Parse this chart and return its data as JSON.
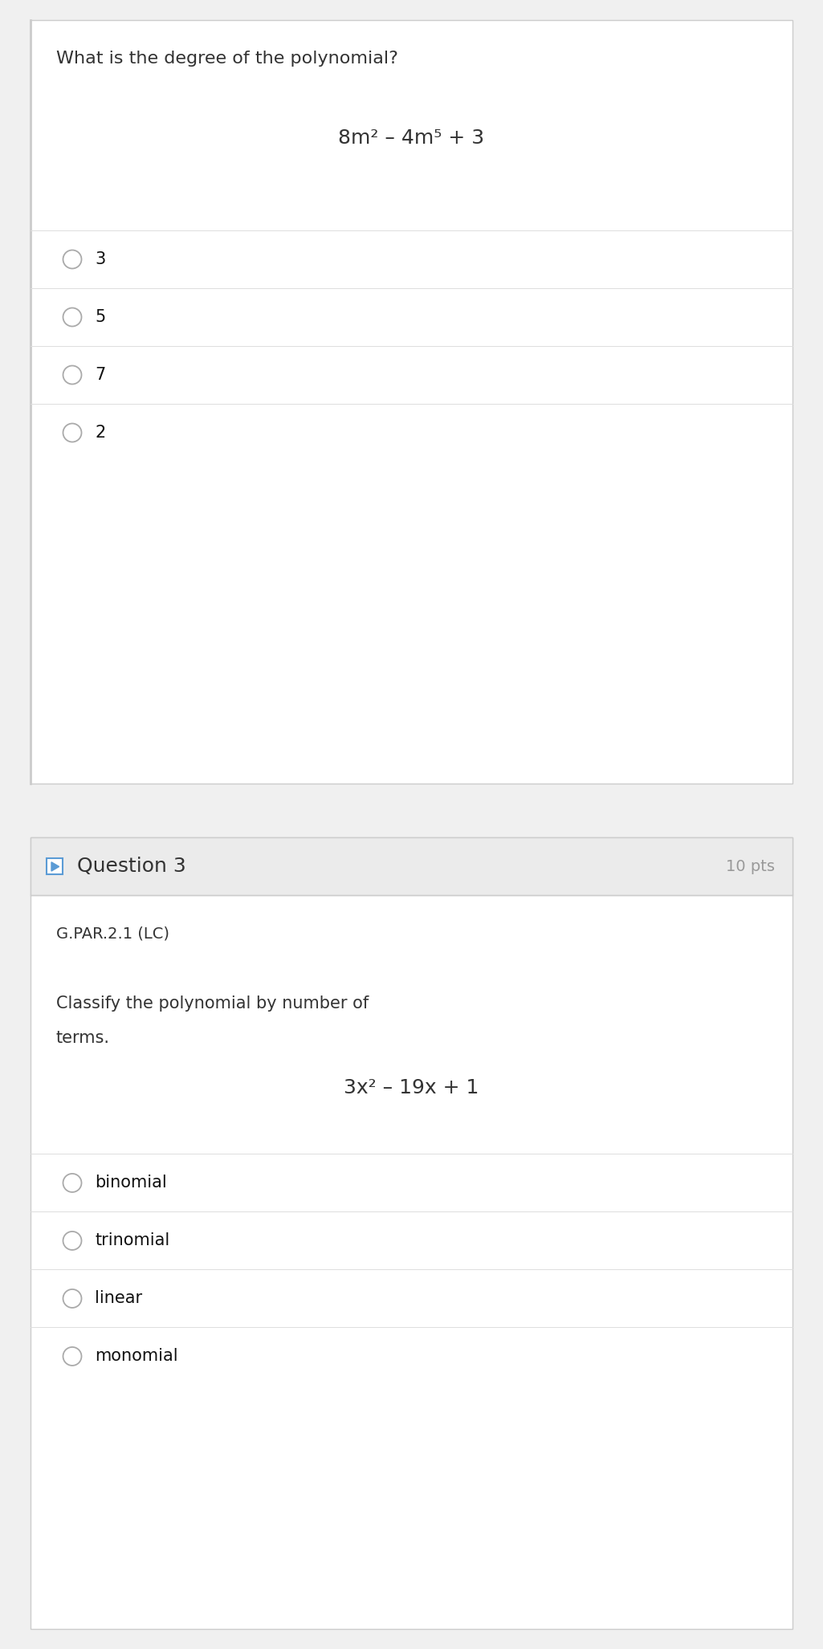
{
  "page_bg": "#f0f0f0",
  "card_bg": "#ffffff",
  "card_border": "#cccccc",
  "header_bg": "#ebebeb",
  "question_header_color": "#5b9bd5",
  "text_color": "#333333",
  "choice_text_color": "#111111",
  "gray_circle": "#aaaaaa",
  "separator_color": "#dddddd",
  "pts_color": "#999999",
  "q2_header_text": "Question 3",
  "q2_pts": "10 pts",
  "q2_standard": "G.PAR.2.1 (LC)",
  "q2_question_line1": "Classify the polynomial by number of",
  "q2_question_line2": "terms.",
  "q2_formula": "3x² – 19x + 1",
  "q2_choices": [
    "binomial",
    "trinomial",
    "linear",
    "monomial"
  ],
  "q1_question": "What is the degree of the polynomial?",
  "q1_formula": "8m² – 4m⁵ + 3",
  "q1_choices": [
    "3",
    "5",
    "7",
    "2"
  ],
  "fig_w": 10.25,
  "fig_h": 20.54,
  "dpi": 100,
  "font_size_q1_title": 16,
  "font_size_formula": 18,
  "font_size_choice": 15,
  "font_size_header": 18,
  "font_size_standard": 14,
  "font_size_q2_body": 15,
  "font_size_pts": 14
}
